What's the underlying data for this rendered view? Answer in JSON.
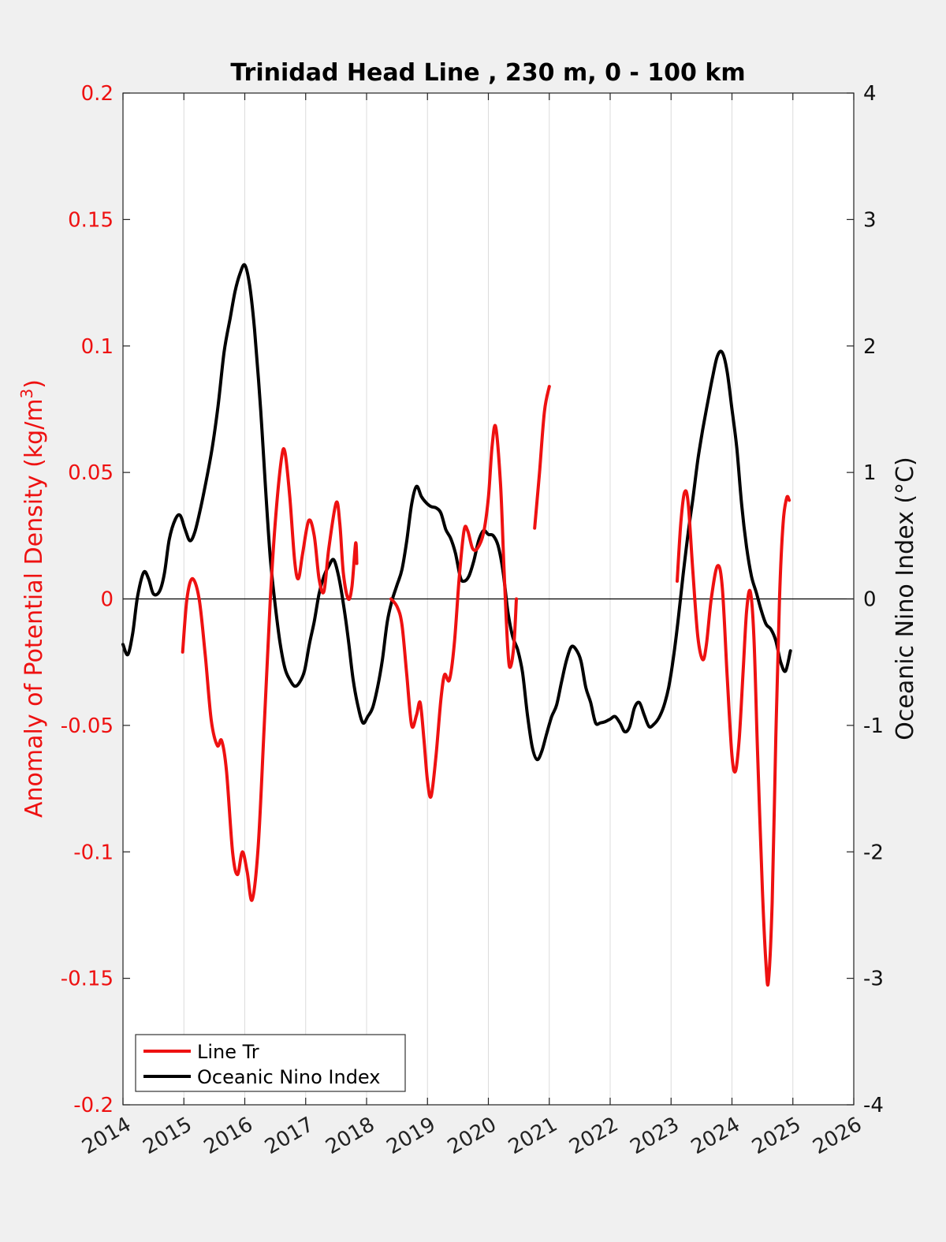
{
  "chart_data": {
    "type": "line",
    "title": "Trinidad Head Line , 230 m, 0 - 100 km",
    "ylabel_left": "Anomaly of Potential Density (kg/m",
    "ylabel_left_sup": "3",
    "ylabel_left_end": ")",
    "ylabel_right": "Oceanic Nino Index (°C)",
    "xlim": [
      2014,
      2026
    ],
    "ylim_left": [
      -0.2,
      0.2
    ],
    "ylim_right": [
      -4,
      4
    ],
    "x_ticks": [
      "2014",
      "2015",
      "2016",
      "2017",
      "2018",
      "2019",
      "2020",
      "2021",
      "2022",
      "2023",
      "2024",
      "2025",
      "2026"
    ],
    "y_ticks_left": [
      "0.2",
      "0.15",
      "0.1",
      "0.05",
      "0",
      "-0.05",
      "-0.1",
      "-0.15",
      "-0.2"
    ],
    "y_ticks_right": [
      "4",
      "3",
      "2",
      "1",
      "0",
      "-1",
      "-2",
      "-3",
      "-4"
    ],
    "grid": "vertical",
    "legend_position": "bottom-left",
    "series": [
      {
        "name": "Line Tr",
        "axis": "left",
        "color": "#ee1111",
        "segments": [
          [
            [
              2014.98,
              -0.021
            ],
            [
              2015.05,
              0.0
            ],
            [
              2015.14,
              0.008
            ],
            [
              2015.25,
              0.0
            ],
            [
              2015.35,
              -0.022
            ],
            [
              2015.45,
              -0.048
            ],
            [
              2015.55,
              -0.058
            ],
            [
              2015.62,
              -0.056
            ],
            [
              2015.7,
              -0.068
            ],
            [
              2015.8,
              -0.1
            ],
            [
              2015.88,
              -0.109
            ],
            [
              2015.96,
              -0.1
            ],
            [
              2016.04,
              -0.108
            ],
            [
              2016.12,
              -0.119
            ],
            [
              2016.22,
              -0.098
            ],
            [
              2016.32,
              -0.05
            ],
            [
              2016.42,
              0.0
            ],
            [
              2016.5,
              0.03
            ],
            [
              2016.6,
              0.055
            ],
            [
              2016.66,
              0.058
            ],
            [
              2016.74,
              0.04
            ],
            [
              2016.82,
              0.015
            ],
            [
              2016.88,
              0.008
            ],
            [
              2016.95,
              0.018
            ],
            [
              2017.05,
              0.031
            ],
            [
              2017.14,
              0.025
            ],
            [
              2017.22,
              0.008
            ],
            [
              2017.3,
              0.003
            ],
            [
              2017.38,
              0.02
            ],
            [
              2017.5,
              0.038
            ],
            [
              2017.56,
              0.03
            ],
            [
              2017.62,
              0.01
            ],
            [
              2017.7,
              0.0
            ],
            [
              2017.76,
              0.005
            ],
            [
              2017.82,
              0.022
            ],
            [
              2017.84,
              0.014
            ]
          ],
          [
            [
              2018.4,
              0.0
            ],
            [
              2018.5,
              -0.003
            ],
            [
              2018.58,
              -0.01
            ],
            [
              2018.66,
              -0.03
            ],
            [
              2018.74,
              -0.05
            ],
            [
              2018.82,
              -0.046
            ],
            [
              2018.88,
              -0.041
            ],
            [
              2018.94,
              -0.055
            ],
            [
              2019.0,
              -0.072
            ],
            [
              2019.06,
              -0.078
            ],
            [
              2019.14,
              -0.062
            ],
            [
              2019.22,
              -0.04
            ],
            [
              2019.28,
              -0.03
            ],
            [
              2019.36,
              -0.032
            ],
            [
              2019.44,
              -0.018
            ],
            [
              2019.52,
              0.008
            ],
            [
              2019.6,
              0.027
            ],
            [
              2019.66,
              0.027
            ],
            [
              2019.74,
              0.02
            ],
            [
              2019.82,
              0.02
            ],
            [
              2019.92,
              0.026
            ],
            [
              2020.0,
              0.04
            ],
            [
              2020.06,
              0.06
            ],
            [
              2020.12,
              0.068
            ],
            [
              2020.2,
              0.045
            ],
            [
              2020.26,
              0.01
            ],
            [
              2020.32,
              -0.02
            ],
            [
              2020.36,
              -0.027
            ],
            [
              2020.42,
              -0.018
            ],
            [
              2020.46,
              0.0
            ]
          ],
          [
            [
              2020.76,
              0.028
            ],
            [
              2020.84,
              0.05
            ],
            [
              2020.92,
              0.074
            ],
            [
              2021.0,
              0.084
            ]
          ],
          [
            [
              2023.1,
              0.007
            ],
            [
              2023.16,
              0.03
            ],
            [
              2023.22,
              0.042
            ],
            [
              2023.28,
              0.038
            ],
            [
              2023.36,
              0.01
            ],
            [
              2023.44,
              -0.015
            ],
            [
              2023.52,
              -0.024
            ],
            [
              2023.58,
              -0.018
            ],
            [
              2023.66,
              0.0
            ],
            [
              2023.76,
              0.013
            ],
            [
              2023.84,
              0.005
            ],
            [
              2023.92,
              -0.03
            ],
            [
              2024.0,
              -0.062
            ],
            [
              2024.06,
              -0.068
            ],
            [
              2024.12,
              -0.055
            ],
            [
              2024.18,
              -0.03
            ],
            [
              2024.24,
              -0.005
            ],
            [
              2024.3,
              0.003
            ],
            [
              2024.36,
              -0.015
            ],
            [
              2024.42,
              -0.06
            ],
            [
              2024.5,
              -0.115
            ],
            [
              2024.56,
              -0.145
            ],
            [
              2024.6,
              -0.151
            ],
            [
              2024.66,
              -0.12
            ],
            [
              2024.72,
              -0.055
            ],
            [
              2024.78,
              0.0
            ],
            [
              2024.84,
              0.03
            ],
            [
              2024.9,
              0.04
            ],
            [
              2024.94,
              0.039
            ]
          ]
        ]
      },
      {
        "name": "Oceanic Nino Index",
        "axis": "right",
        "color": "#000000",
        "segments": [
          [
            [
              2014.0,
              -0.36
            ],
            [
              2014.08,
              -0.44
            ],
            [
              2014.16,
              -0.27
            ],
            [
              2014.24,
              0.02
            ],
            [
              2014.34,
              0.21
            ],
            [
              2014.42,
              0.16
            ],
            [
              2014.5,
              0.04
            ],
            [
              2014.6,
              0.06
            ],
            [
              2014.68,
              0.2
            ],
            [
              2014.76,
              0.47
            ],
            [
              2014.86,
              0.63
            ],
            [
              2014.94,
              0.66
            ],
            [
              2015.02,
              0.55
            ],
            [
              2015.1,
              0.46
            ],
            [
              2015.18,
              0.53
            ],
            [
              2015.28,
              0.73
            ],
            [
              2015.36,
              0.92
            ],
            [
              2015.46,
              1.18
            ],
            [
              2015.56,
              1.52
            ],
            [
              2015.66,
              1.95
            ],
            [
              2015.76,
              2.22
            ],
            [
              2015.84,
              2.43
            ],
            [
              2015.92,
              2.57
            ],
            [
              2016.0,
              2.64
            ],
            [
              2016.08,
              2.48
            ],
            [
              2016.16,
              2.13
            ],
            [
              2016.26,
              1.5
            ],
            [
              2016.34,
              0.88
            ],
            [
              2016.42,
              0.32
            ],
            [
              2016.5,
              -0.05
            ],
            [
              2016.58,
              -0.35
            ],
            [
              2016.66,
              -0.55
            ],
            [
              2016.74,
              -0.64
            ],
            [
              2016.82,
              -0.69
            ],
            [
              2016.9,
              -0.66
            ],
            [
              2016.98,
              -0.57
            ],
            [
              2017.06,
              -0.36
            ],
            [
              2017.14,
              -0.18
            ],
            [
              2017.22,
              0.04
            ],
            [
              2017.3,
              0.18
            ],
            [
              2017.38,
              0.26
            ],
            [
              2017.46,
              0.31
            ],
            [
              2017.54,
              0.18
            ],
            [
              2017.62,
              -0.04
            ],
            [
              2017.7,
              -0.32
            ],
            [
              2017.78,
              -0.64
            ],
            [
              2017.86,
              -0.85
            ],
            [
              2017.94,
              -0.98
            ],
            [
              2018.02,
              -0.93
            ],
            [
              2018.1,
              -0.86
            ],
            [
              2018.18,
              -0.7
            ],
            [
              2018.26,
              -0.48
            ],
            [
              2018.34,
              -0.18
            ],
            [
              2018.42,
              -0.01
            ],
            [
              2018.5,
              0.11
            ],
            [
              2018.58,
              0.23
            ],
            [
              2018.66,
              0.46
            ],
            [
              2018.74,
              0.75
            ],
            [
              2018.82,
              0.89
            ],
            [
              2018.9,
              0.81
            ],
            [
              2018.98,
              0.76
            ],
            [
              2019.06,
              0.73
            ],
            [
              2019.14,
              0.72
            ],
            [
              2019.22,
              0.68
            ],
            [
              2019.3,
              0.55
            ],
            [
              2019.38,
              0.48
            ],
            [
              2019.46,
              0.36
            ],
            [
              2019.54,
              0.17
            ],
            [
              2019.6,
              0.14
            ],
            [
              2019.68,
              0.18
            ],
            [
              2019.76,
              0.3
            ],
            [
              2019.84,
              0.46
            ],
            [
              2019.92,
              0.54
            ],
            [
              2020.0,
              0.51
            ],
            [
              2020.08,
              0.5
            ],
            [
              2020.16,
              0.42
            ],
            [
              2020.24,
              0.22
            ],
            [
              2020.32,
              -0.1
            ],
            [
              2020.4,
              -0.3
            ],
            [
              2020.48,
              -0.4
            ],
            [
              2020.56,
              -0.58
            ],
            [
              2020.64,
              -0.91
            ],
            [
              2020.72,
              -1.17
            ],
            [
              2020.8,
              -1.27
            ],
            [
              2020.88,
              -1.2
            ],
            [
              2020.96,
              -1.06
            ],
            [
              2021.04,
              -0.93
            ],
            [
              2021.12,
              -0.84
            ],
            [
              2021.2,
              -0.66
            ],
            [
              2021.28,
              -0.49
            ],
            [
              2021.36,
              -0.38
            ],
            [
              2021.44,
              -0.4
            ],
            [
              2021.52,
              -0.49
            ],
            [
              2021.6,
              -0.7
            ],
            [
              2021.68,
              -0.82
            ],
            [
              2021.76,
              -0.98
            ],
            [
              2021.84,
              -0.98
            ],
            [
              2021.92,
              -0.97
            ],
            [
              2022.0,
              -0.95
            ],
            [
              2022.08,
              -0.93
            ],
            [
              2022.16,
              -0.98
            ],
            [
              2022.24,
              -1.05
            ],
            [
              2022.32,
              -1.01
            ],
            [
              2022.4,
              -0.86
            ],
            [
              2022.48,
              -0.82
            ],
            [
              2022.56,
              -0.92
            ],
            [
              2022.64,
              -1.01
            ],
            [
              2022.72,
              -0.99
            ],
            [
              2022.8,
              -0.94
            ],
            [
              2022.88,
              -0.85
            ],
            [
              2022.96,
              -0.7
            ],
            [
              2023.04,
              -0.46
            ],
            [
              2023.12,
              -0.15
            ],
            [
              2023.2,
              0.2
            ],
            [
              2023.28,
              0.52
            ],
            [
              2023.36,
              0.8
            ],
            [
              2023.44,
              1.1
            ],
            [
              2023.52,
              1.34
            ],
            [
              2023.6,
              1.55
            ],
            [
              2023.68,
              1.75
            ],
            [
              2023.76,
              1.92
            ],
            [
              2023.84,
              1.95
            ],
            [
              2023.92,
              1.8
            ],
            [
              2024.0,
              1.5
            ],
            [
              2024.08,
              1.19
            ],
            [
              2024.16,
              0.74
            ],
            [
              2024.24,
              0.41
            ],
            [
              2024.32,
              0.18
            ],
            [
              2024.4,
              0.05
            ],
            [
              2024.48,
              -0.09
            ],
            [
              2024.56,
              -0.2
            ],
            [
              2024.64,
              -0.24
            ],
            [
              2024.72,
              -0.33
            ],
            [
              2024.8,
              -0.5
            ],
            [
              2024.88,
              -0.57
            ],
            [
              2024.96,
              -0.41
            ]
          ]
        ]
      }
    ]
  }
}
